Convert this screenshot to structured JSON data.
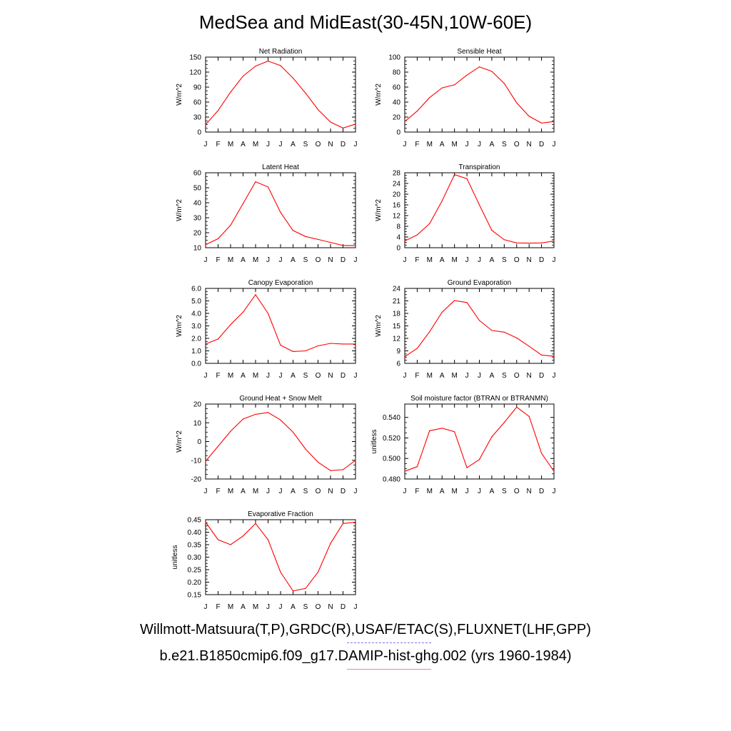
{
  "page": {
    "title": "MedSea and MidEast(30-45N,10W-60E)"
  },
  "legend": {
    "observations": "Willmott-Matsuura(T,P),GRDC(R),USAF/ETAC(S),FLUXNET(LHF,GPP)",
    "observations_style": "dashed",
    "observations_color": "#7a7ae6",
    "model": "b.e21.B1850cmip6.f09_g17.DAMIP-hist-ghg.002 (yrs 1960-1984)",
    "model_style": "solid",
    "model_color": "#ff8080"
  },
  "colors": {
    "series_line": "#ff0000"
  },
  "chart_data": [
    {
      "type": "line",
      "title": "Net Radiation",
      "xlabel": "",
      "ylabel": "W/m^2",
      "categories": [
        "J",
        "F",
        "M",
        "A",
        "M",
        "J",
        "J",
        "A",
        "S",
        "O",
        "N",
        "D",
        "J"
      ],
      "values": [
        15,
        43,
        80,
        112,
        132,
        142,
        133,
        108,
        78,
        45,
        20,
        8,
        16
      ],
      "ylim": [
        0,
        150
      ],
      "yticks": [
        "0",
        "30",
        "60",
        "90",
        "120",
        "150"
      ],
      "grid": false
    },
    {
      "type": "line",
      "title": "Sensible Heat",
      "xlabel": "",
      "ylabel": "W/m^2",
      "categories": [
        "J",
        "F",
        "M",
        "A",
        "M",
        "J",
        "J",
        "A",
        "S",
        "O",
        "N",
        "D",
        "J"
      ],
      "values": [
        14,
        28,
        46,
        59,
        63,
        76,
        87,
        81,
        65,
        39,
        21,
        12,
        14
      ],
      "ylim": [
        0,
        100
      ],
      "yticks": [
        "0",
        "20",
        "40",
        "60",
        "80",
        "100"
      ],
      "grid": false
    },
    {
      "type": "line",
      "title": "Latent Heat",
      "xlabel": "",
      "ylabel": "W/m^2",
      "categories": [
        "J",
        "F",
        "M",
        "A",
        "M",
        "J",
        "J",
        "A",
        "S",
        "O",
        "N",
        "D",
        "J"
      ],
      "values": [
        12,
        16,
        25,
        39.5,
        54,
        50.5,
        33.5,
        21.5,
        17.5,
        15.5,
        13.5,
        11.5,
        11.5
      ],
      "ylim": [
        10,
        60
      ],
      "yticks": [
        "10",
        "20",
        "30",
        "40",
        "50",
        "60"
      ],
      "grid": false
    },
    {
      "type": "line",
      "title": "Transpiration",
      "xlabel": "",
      "ylabel": "W/m^2",
      "categories": [
        "J",
        "F",
        "M",
        "A",
        "M",
        "J",
        "J",
        "A",
        "S",
        "O",
        "N",
        "D",
        "J"
      ],
      "values": [
        2.5,
        4.8,
        9,
        17.5,
        27.3,
        25.8,
        16,
        6.5,
        3,
        1.8,
        1.7,
        1.8,
        2.5
      ],
      "ylim": [
        0,
        28
      ],
      "yticks": [
        "0",
        "4",
        "8",
        "12",
        "16",
        "20",
        "24",
        "28"
      ],
      "grid": false
    },
    {
      "type": "line",
      "title": "Canopy Evaporation",
      "xlabel": "",
      "ylabel": "W/m^2",
      "categories": [
        "J",
        "F",
        "M",
        "A",
        "M",
        "J",
        "J",
        "A",
        "S",
        "O",
        "N",
        "D",
        "J"
      ],
      "values": [
        1.55,
        1.95,
        3.1,
        4.1,
        5.5,
        4.0,
        1.45,
        0.95,
        1.0,
        1.4,
        1.6,
        1.55,
        1.55
      ],
      "ylim": [
        0,
        6
      ],
      "yticks": [
        "0.0",
        "1.0",
        "2.0",
        "3.0",
        "4.0",
        "5.0",
        "6.0"
      ],
      "grid": false
    },
    {
      "type": "line",
      "title": "Ground Evaporation",
      "xlabel": "",
      "ylabel": "W/m^2",
      "categories": [
        "J",
        "F",
        "M",
        "A",
        "M",
        "J",
        "J",
        "A",
        "S",
        "O",
        "N",
        "D",
        "J"
      ],
      "values": [
        7.6,
        9.6,
        13.6,
        18.3,
        21.1,
        20.6,
        16.3,
        13.9,
        13.5,
        12.1,
        10.1,
        8.0,
        7.7
      ],
      "ylim": [
        6,
        24
      ],
      "yticks": [
        "6",
        "9",
        "12",
        "15",
        "18",
        "21",
        "24"
      ],
      "grid": false
    },
    {
      "type": "line",
      "title": "Ground Heat + Snow Melt",
      "xlabel": "",
      "ylabel": "W/m^2",
      "categories": [
        "J",
        "F",
        "M",
        "A",
        "M",
        "J",
        "J",
        "A",
        "S",
        "O",
        "N",
        "D",
        "J"
      ],
      "values": [
        -10.5,
        -2.5,
        5.5,
        12,
        14.5,
        15.5,
        11.5,
        5,
        -4,
        -11,
        -15.5,
        -15,
        -10
      ],
      "ylim": [
        -20,
        20
      ],
      "yticks": [
        "-20",
        "-10",
        "0",
        "10",
        "20"
      ],
      "grid": false
    },
    {
      "type": "line",
      "title": "Soil moisture factor (BTRAN or BTRANMN)",
      "xlabel": "",
      "ylabel": "unitless",
      "categories": [
        "J",
        "F",
        "M",
        "A",
        "M",
        "J",
        "J",
        "A",
        "S",
        "O",
        "N",
        "D",
        "J"
      ],
      "values": [
        0.4875,
        0.492,
        0.527,
        0.5295,
        0.526,
        0.491,
        0.499,
        0.521,
        0.535,
        0.55,
        0.541,
        0.505,
        0.4875
      ],
      "ylim": [
        0.48,
        0.553
      ],
      "yticks": [
        "0.480",
        "0.500",
        "0.520",
        "0.540"
      ],
      "grid": false
    },
    {
      "type": "line",
      "title": "Evaporative Fraction",
      "xlabel": "",
      "ylabel": "unitless",
      "categories": [
        "J",
        "F",
        "M",
        "A",
        "M",
        "J",
        "J",
        "A",
        "S",
        "O",
        "N",
        "D",
        "J"
      ],
      "values": [
        0.44,
        0.37,
        0.35,
        0.385,
        0.435,
        0.37,
        0.24,
        0.165,
        0.175,
        0.24,
        0.355,
        0.435,
        0.44
      ],
      "ylim": [
        0.15,
        0.45
      ],
      "yticks": [
        "0.15",
        "0.20",
        "0.25",
        "0.30",
        "0.35",
        "0.40",
        "0.45"
      ],
      "grid": false
    }
  ]
}
